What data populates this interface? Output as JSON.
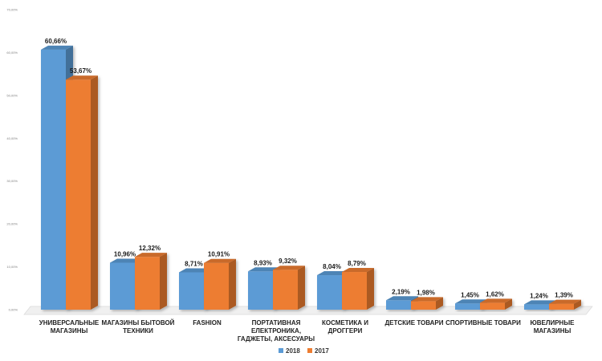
{
  "chart_data": {
    "type": "bar",
    "categories": [
      [
        "УНИВЕРСАЛЬНЫЕ",
        "МАГАЗИНЫ"
      ],
      [
        "МАГАЗИНЫ БЫТОВОЙ",
        "ТЕХНИКИ"
      ],
      [
        "FASHION"
      ],
      [
        "ПОРТАТИВНАЯ",
        "ЕЛЕКТРОНИКА,",
        "ГАДЖЕТЫ, АКСЕСУАРЫ"
      ],
      [
        "КОСМЕТИКА И",
        "ДРОГГЕРИ"
      ],
      [
        "ДЕТСКИЕ ТОВАРИ"
      ],
      [
        "СПОРТИВНЫЕ ТОВАРИ"
      ],
      [
        "ЮВЕЛИРНЫЕ",
        "МАГАЗИНЫ"
      ]
    ],
    "series": [
      {
        "name": "2018",
        "color": "#5b9bd5",
        "values": [
          60.66,
          10.96,
          8.71,
          8.93,
          8.04,
          2.19,
          1.45,
          1.24
        ],
        "labels": [
          "60,66%",
          "10,96%",
          "8,71%",
          "8,93%",
          "8,04%",
          "2,19%",
          "1,45%",
          "1,24%"
        ]
      },
      {
        "name": "2017",
        "color": "#ed7d31",
        "values": [
          53.67,
          12.32,
          10.91,
          9.32,
          8.79,
          1.98,
          1.62,
          1.39
        ],
        "labels": [
          "53,67%",
          "12,32%",
          "10,91%",
          "9,32%",
          "8,79%",
          "1,98%",
          "1,62%",
          "1,39%"
        ]
      }
    ],
    "y_ticks": [
      {
        "value": 0,
        "label": "0,00%"
      },
      {
        "value": 10,
        "label": "10,00%"
      },
      {
        "value": 20,
        "label": "20,00%"
      },
      {
        "value": 30,
        "label": "30,00%"
      },
      {
        "value": 40,
        "label": "40,00%"
      },
      {
        "value": 50,
        "label": "50,00%"
      },
      {
        "value": 60,
        "label": "60,00%"
      },
      {
        "value": 70,
        "label": "70,00%"
      }
    ],
    "ylim": [
      0,
      70
    ],
    "legend_position": "bottom-center",
    "style": "3d-column",
    "grid": false
  }
}
